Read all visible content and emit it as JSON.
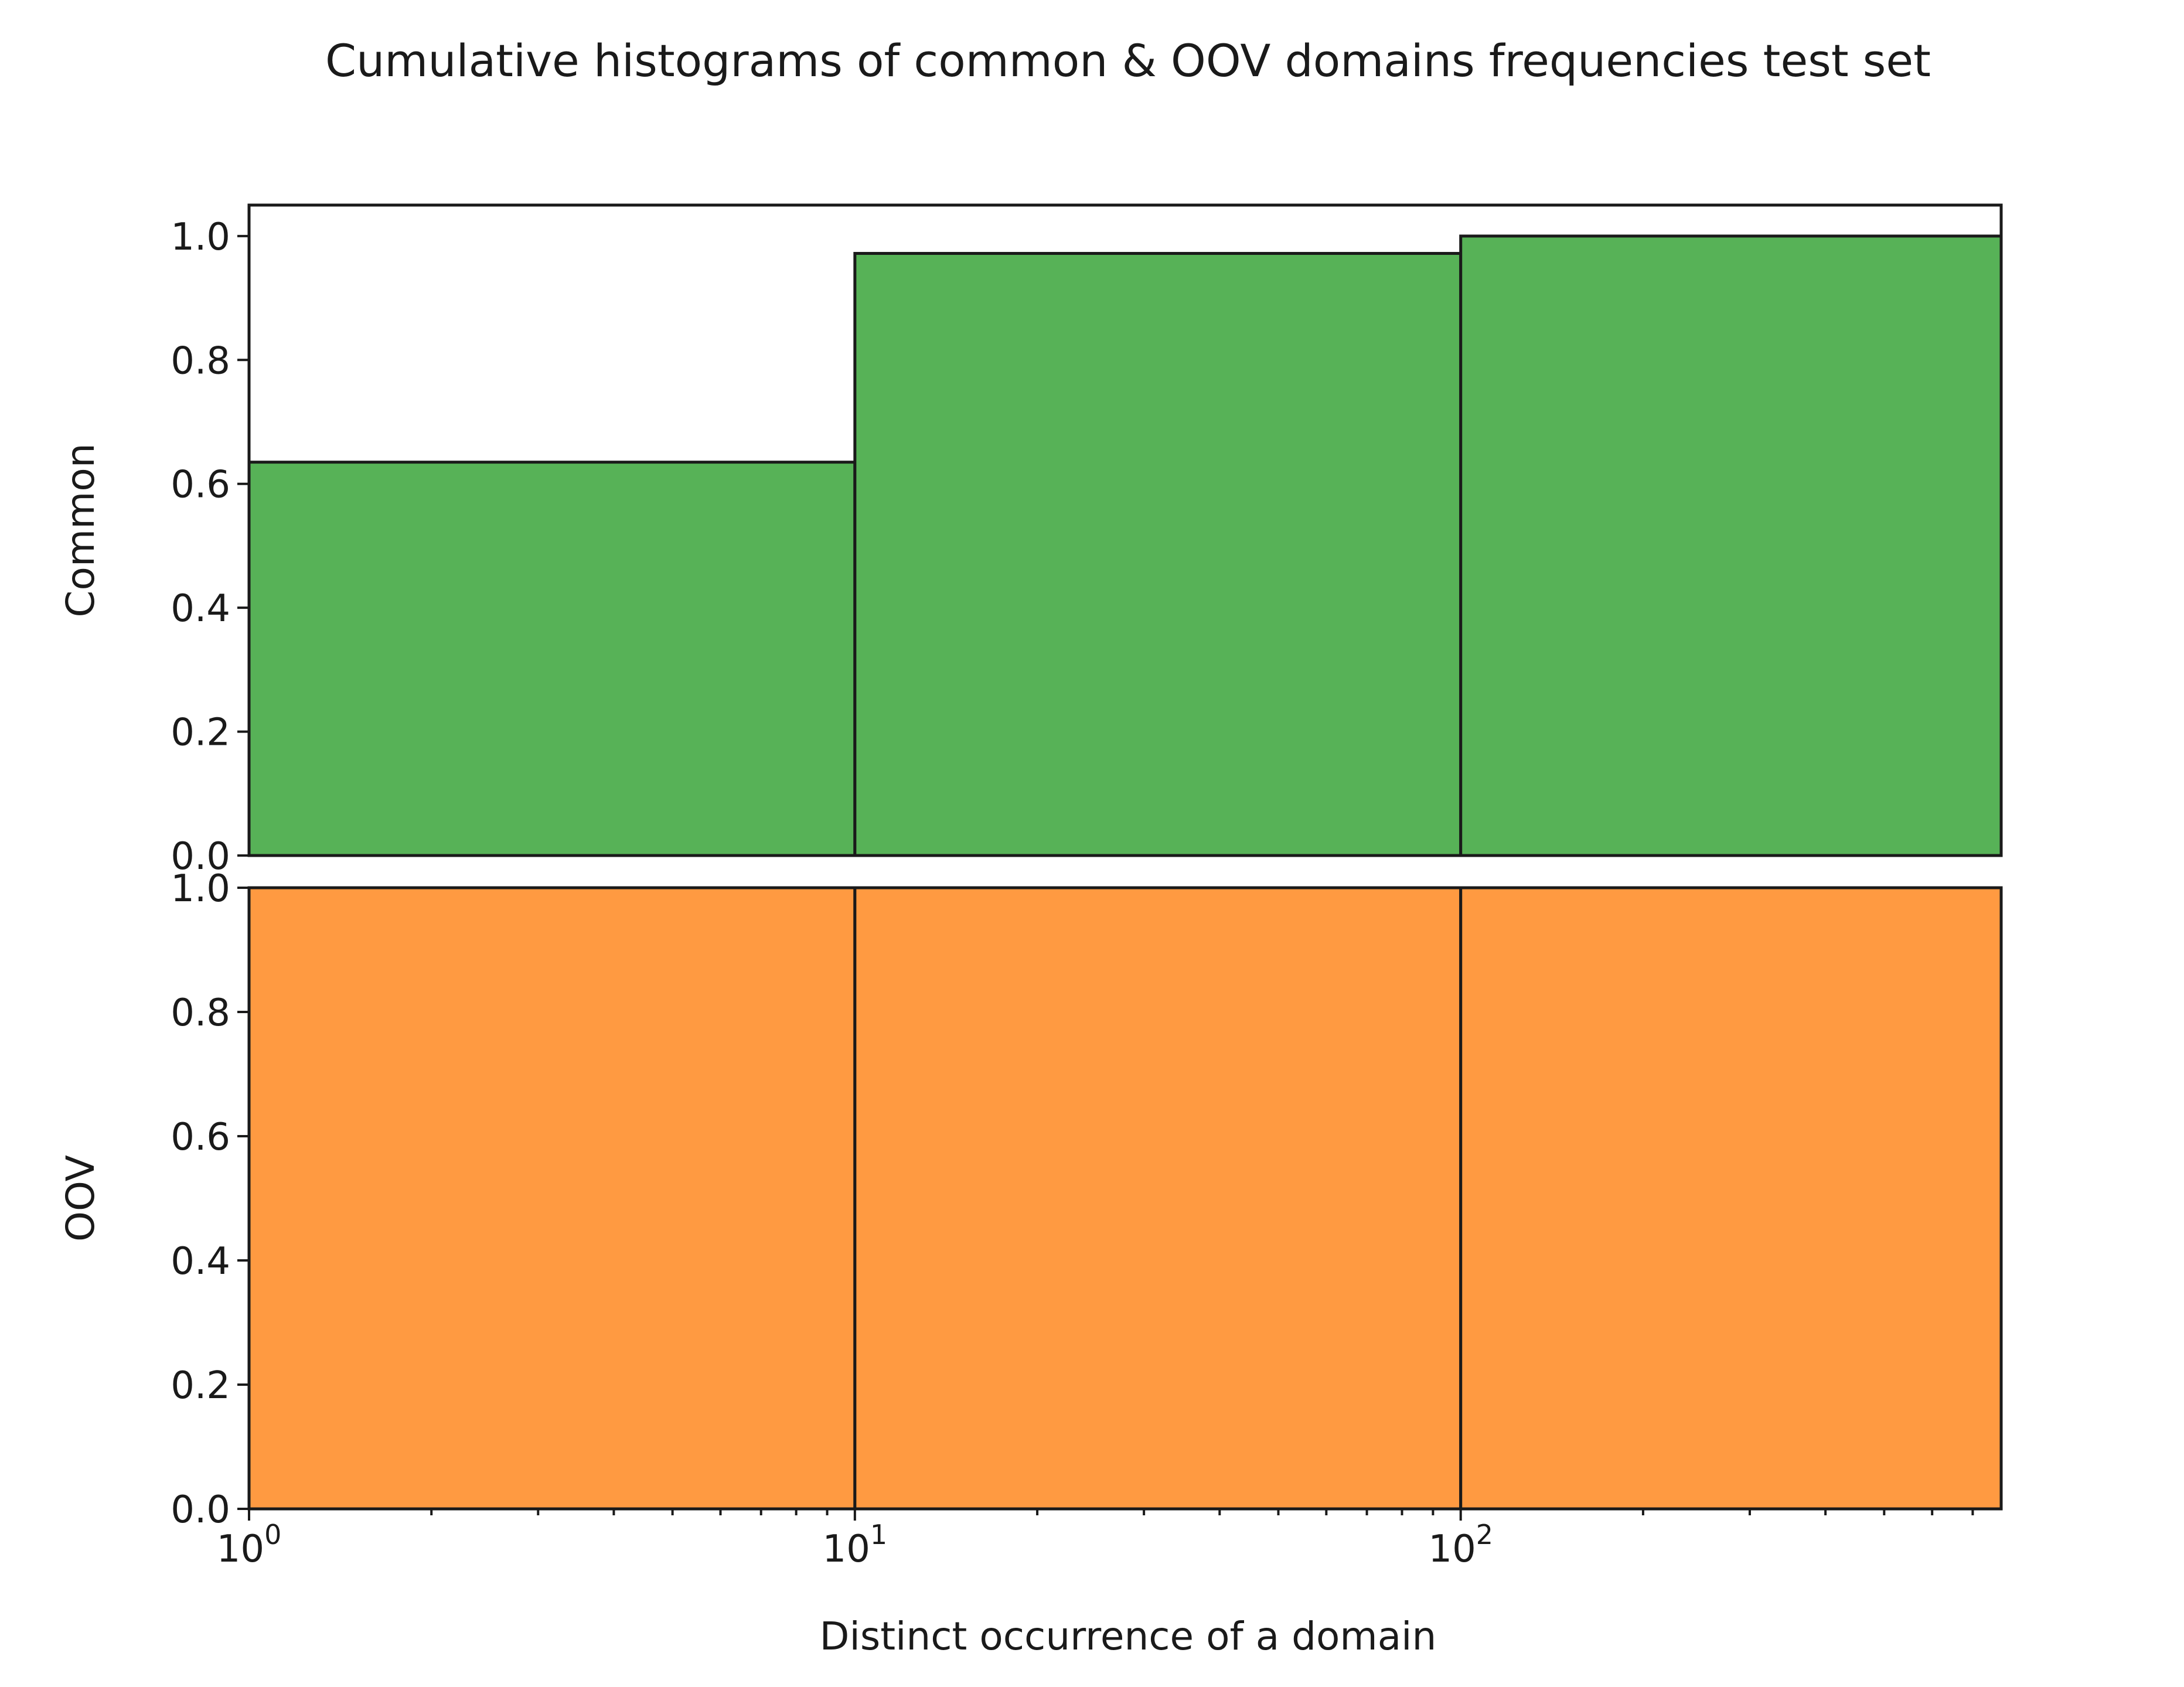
{
  "chart_data": {
    "type": "bar",
    "title": "Cumulative histograms of common & OOV domains frequencies test set",
    "xlabel": "Distinct occurrence of a domain",
    "xscale": "log",
    "xlim": [
      1,
      780
    ],
    "x_tick_labels": [
      {
        "base": "10",
        "exp": "0",
        "value": 1
      },
      {
        "base": "10",
        "exp": "1",
        "value": 10
      },
      {
        "base": "10",
        "exp": "2",
        "value": 100
      }
    ],
    "y_tick_labels": [
      "0.0",
      "0.2",
      "0.4",
      "0.6",
      "0.8",
      "1.0"
    ],
    "bin_edges": [
      1,
      10,
      100,
      780
    ],
    "subplots": [
      {
        "ylabel": "Common",
        "color": "#57b257",
        "ylim": [
          0,
          1.05
        ],
        "values": [
          0.635,
          0.972,
          1.0
        ]
      },
      {
        "ylabel": "OOV",
        "color": "#ff9a41",
        "ylim": [
          0,
          1.0
        ],
        "values": [
          1.0,
          1.0,
          1.0
        ]
      }
    ],
    "grid": false,
    "legend": "none"
  }
}
